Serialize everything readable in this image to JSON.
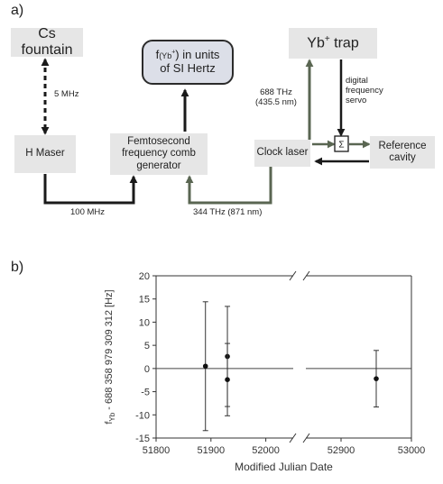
{
  "panel_a_label": "a)",
  "panel_b_label": "b)",
  "boxes": {
    "cs_fountain": "Cs fountain",
    "h_maser": "H Maser",
    "yb_unit_prefix": "f",
    "yb_unit_sub": "(Yb",
    "yb_unit_sup": "+",
    "yb_unit_suffix": ") in units",
    "yb_unit_line2": "of  SI Hertz",
    "femto_line1": "Femtosecond",
    "femto_line2": "frequency comb",
    "femto_line3": "generator",
    "yb_trap_prefix": "Yb",
    "yb_trap_sup": "+",
    "yb_trap_suffix": " trap",
    "clock_laser": "Clock laser",
    "servo_symbol": "Σ",
    "reference_line1": "Reference",
    "reference_line2": "cavity"
  },
  "annotations": {
    "five_mhz": "5 MHz",
    "hundred_mhz": "100 MHz",
    "thz344": "344 THz (871 nm)",
    "thz688_line1": "688 THz",
    "thz688_line2": "(435.5 nm)",
    "servo_line1": "digital",
    "servo_line2": "frequency",
    "servo_line3": "servo"
  },
  "colors": {
    "arrow_dark": "#1a1a1a",
    "arrow_green": "#5a6652",
    "box_fill": "#e6e6e6",
    "rounded_fill": "#dcdfe8"
  },
  "chart_data": {
    "type": "scatter",
    "xlabel": "Modified Julian Date",
    "ylabel": "f",
    "ylabel_sub": "Yb",
    "ylabel_suffix": " - 688 358 979 309 312 [Hz]",
    "x_ticks": [
      "51800",
      "51900",
      "52000",
      "52900",
      "53000"
    ],
    "y_ticks": [
      "-15",
      "-10",
      "-5",
      "0",
      "5",
      "10",
      "15",
      "20"
    ],
    "ylim": [
      -15,
      20
    ],
    "broken_axis": true,
    "x_segment_1": [
      51800,
      52050
    ],
    "x_segment_2": [
      52850,
      53000
    ],
    "points": [
      {
        "x": 51890,
        "y": 0.5,
        "err": 13.9
      },
      {
        "x": 51930,
        "y": 2.6,
        "err": 10.8
      },
      {
        "x": 51930,
        "y": -2.4,
        "err": 7.8
      },
      {
        "x": 52950,
        "y": -2.2,
        "err": 6.1
      }
    ],
    "zero_line": true,
    "grid": false
  }
}
